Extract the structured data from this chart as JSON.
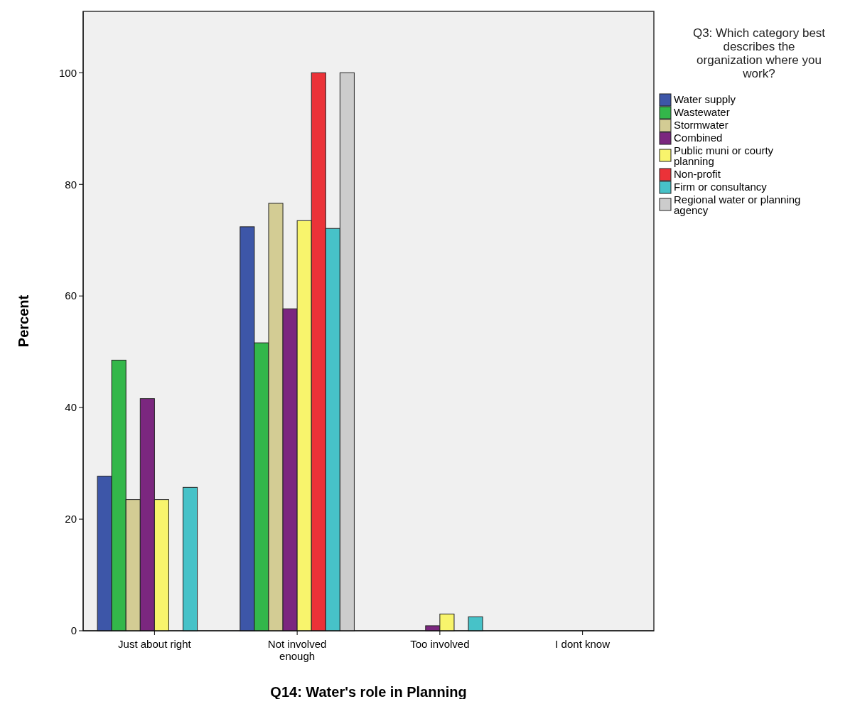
{
  "chart_data": {
    "type": "bar",
    "xlabel": "Q14: Water's role in Planning",
    "ylabel": "Percent",
    "legend_title": "Q3: Which category best describes the organization where you work?",
    "legend": "right",
    "categories": [
      "Just about right",
      "Not involved enough",
      "Too involved",
      "I dont know"
    ],
    "ylim": [
      0,
      111
    ],
    "yticks": [
      0,
      20,
      40,
      60,
      80,
      100
    ],
    "series": [
      {
        "name": "Water supply",
        "color": "#3d56a8",
        "values": [
          27.7,
          72.4,
          0,
          0
        ]
      },
      {
        "name": "Wastewater",
        "color": "#33b74a",
        "values": [
          48.5,
          51.6,
          0,
          0
        ]
      },
      {
        "name": "Stormwater",
        "color": "#d3cc94",
        "values": [
          23.5,
          76.6,
          0,
          0
        ]
      },
      {
        "name": "Combined",
        "color": "#7b277f",
        "values": [
          41.6,
          57.7,
          0.9,
          0
        ]
      },
      {
        "name": "Public muni or courty planning",
        "color": "#f8f46c",
        "values": [
          23.5,
          73.5,
          3.0,
          0
        ]
      },
      {
        "name": "Non-profit",
        "color": "#eb3238",
        "values": [
          0,
          100,
          0,
          0
        ]
      },
      {
        "name": "Firm or consultancy",
        "color": "#47c2c8",
        "values": [
          25.7,
          72.1,
          2.5,
          0
        ]
      },
      {
        "name": "Regional water or planning agency",
        "color": "#cccccc",
        "values": [
          0,
          100,
          0,
          0
        ]
      }
    ]
  }
}
